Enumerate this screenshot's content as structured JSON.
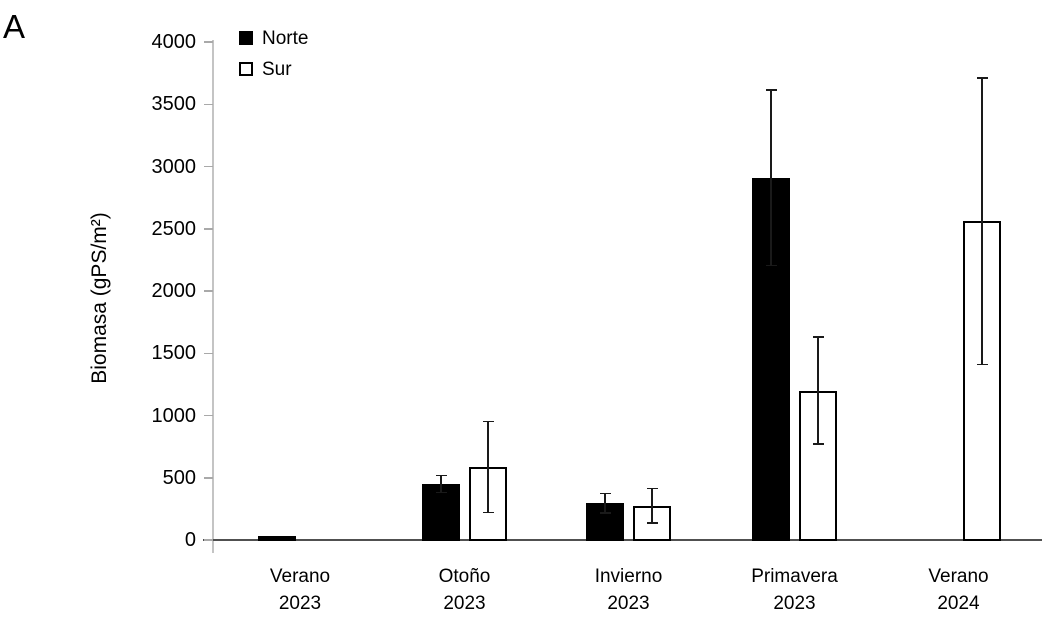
{
  "panel_label": "A",
  "chart_data": {
    "type": "bar",
    "title": "",
    "xlabel": "",
    "ylabel": "Biomasa (gPS/m²)",
    "ylim": [
      0,
      4000
    ],
    "y_ticks": [
      0,
      500,
      1000,
      1500,
      2000,
      2500,
      3000,
      3500,
      4000
    ],
    "grid": false,
    "legend_position": "top-left-inside",
    "categories": [
      [
        "Verano",
        "2023"
      ],
      [
        "Otoño",
        "2023"
      ],
      [
        "Invierno",
        "2023"
      ],
      [
        "Primavera",
        "2023"
      ],
      [
        "Verano",
        "2024"
      ]
    ],
    "series": [
      {
        "name": "Norte",
        "fill": "#000000",
        "border": null,
        "values": [
          30,
          450,
          295,
          2910,
          null
        ],
        "errors": [
          0,
          70,
          80,
          705,
          null
        ]
      },
      {
        "name": "Sur",
        "fill": "#ffffff",
        "border": "#000000",
        "values": [
          null,
          585,
          275,
          1200,
          2560
        ],
        "errors": [
          null,
          365,
          140,
          430,
          1150
        ]
      }
    ],
    "colors": {
      "axis_x": "#505050",
      "axis_y": "#c4c4c4",
      "tick": "#a9a9a9",
      "error_bar": "#1a1a1a",
      "text": "#000000"
    }
  }
}
